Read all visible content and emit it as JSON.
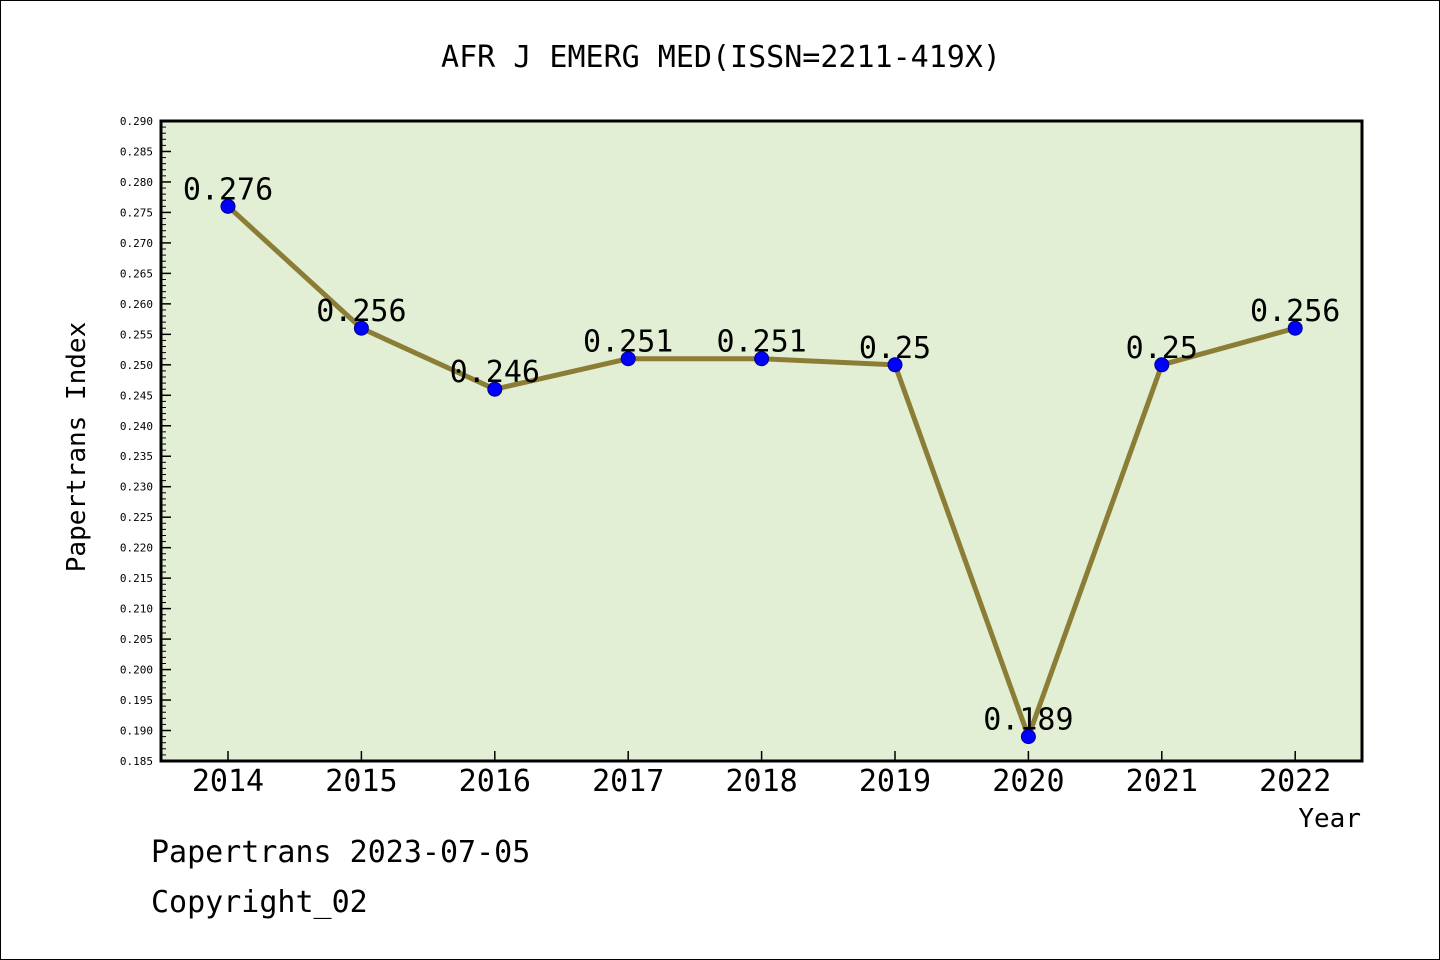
{
  "chart_data": {
    "type": "line",
    "title": "AFR J EMERG MED(ISSN=2211-419X)",
    "xlabel": "Year",
    "ylabel": "Papertrans Index",
    "categories": [
      "2014",
      "2015",
      "2016",
      "2017",
      "2018",
      "2019",
      "2020",
      "2021",
      "2022"
    ],
    "series": [
      {
        "values": [
          0.276,
          0.256,
          0.246,
          0.251,
          0.251,
          0.25,
          0.189,
          0.25,
          0.256
        ],
        "data_labels": [
          "0.276",
          "0.256",
          "0.246",
          "0.251",
          "0.251",
          "0.25",
          "0.189",
          "0.25",
          "0.256"
        ]
      }
    ],
    "ylim": [
      0.185,
      0.29
    ],
    "y_major_step": 0.005,
    "y_tick_labels": [
      "0.185",
      "0.190",
      "0.195",
      "0.200",
      "0.205",
      "0.210",
      "0.215",
      "0.220",
      "0.225",
      "0.230",
      "0.235",
      "0.240",
      "0.245",
      "0.250",
      "0.255",
      "0.260",
      "0.265",
      "0.270",
      "0.275",
      "0.280",
      "0.285",
      "0.290"
    ],
    "grid": false,
    "legend": "none",
    "colors": {
      "plot_background": "#e2efd5",
      "line": "#8b7d35",
      "marker": "#0000ff",
      "axis": "#000000"
    }
  },
  "footer": {
    "line1": "Papertrans 2023-07-05",
    "line2": "Copyright_02"
  }
}
